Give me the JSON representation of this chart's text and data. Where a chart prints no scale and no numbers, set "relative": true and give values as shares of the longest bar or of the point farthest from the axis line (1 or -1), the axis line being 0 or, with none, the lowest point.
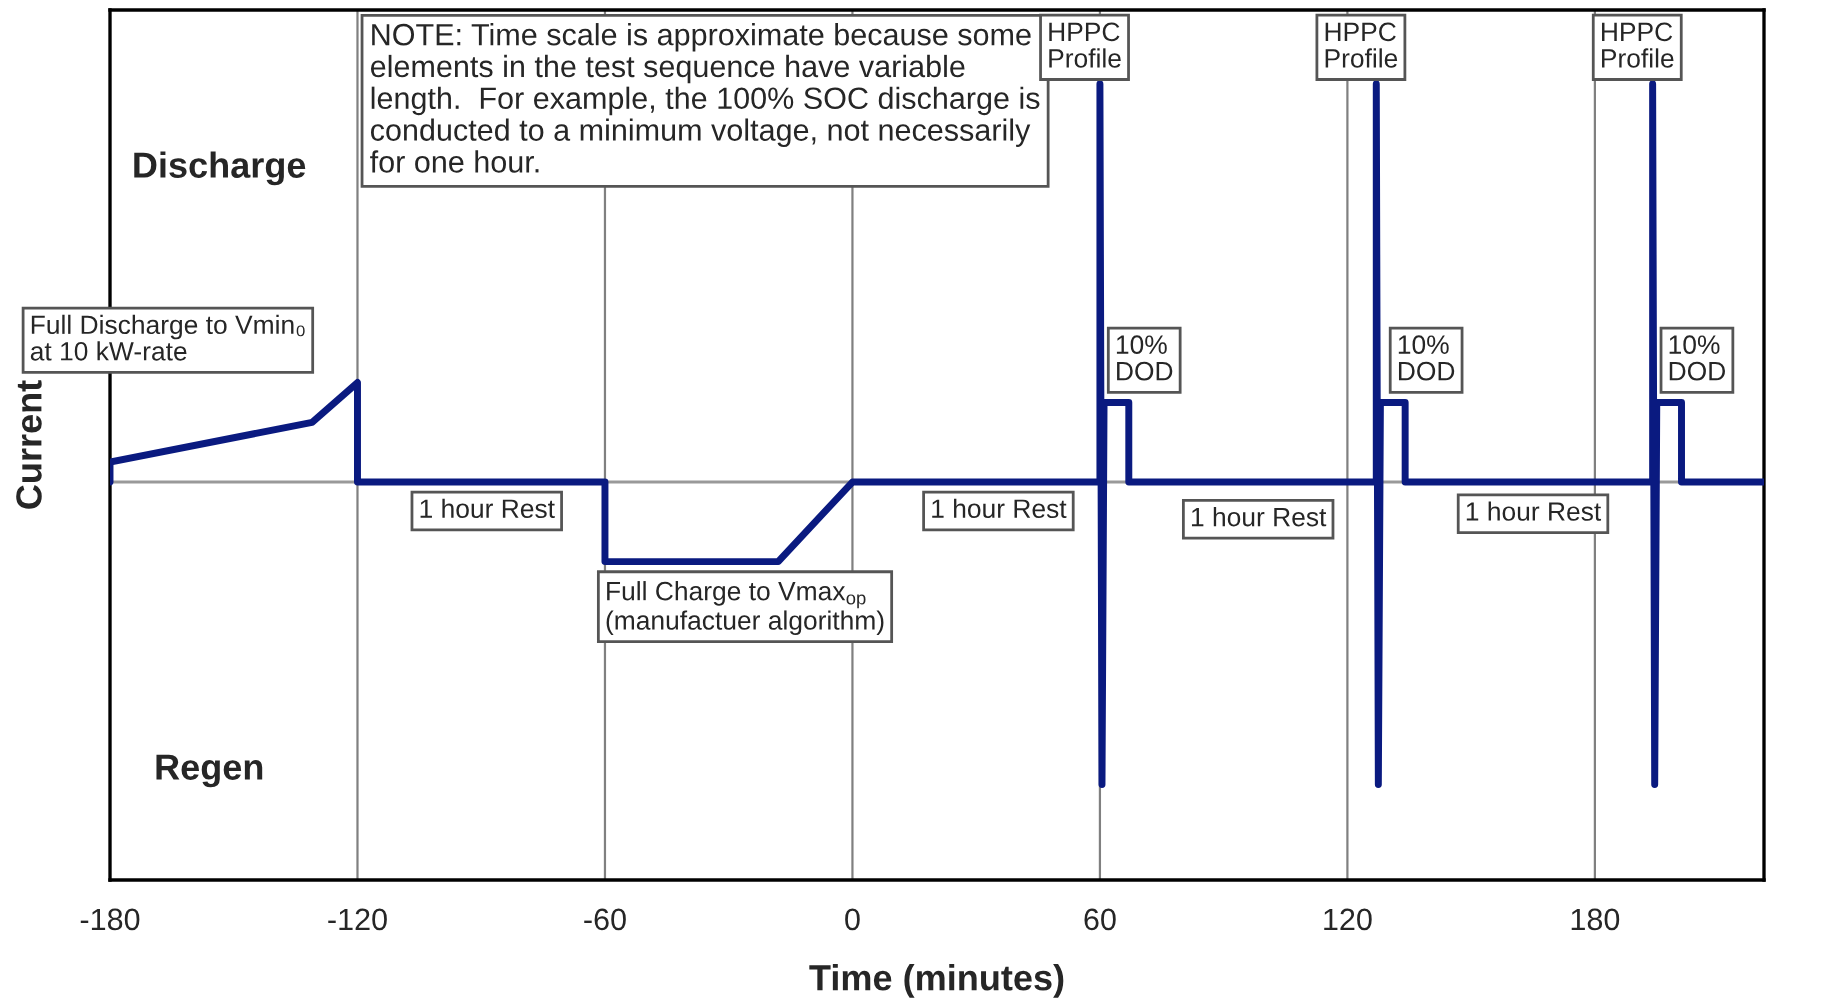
{
  "chart_data": {
    "type": "line",
    "relative": true,
    "xlabel": "Time (minutes)",
    "ylabel": "Current",
    "xlim": [
      -180,
      221
    ],
    "xticks": [
      -180,
      -120,
      -60,
      0,
      60,
      120,
      180
    ],
    "grid": "x",
    "tick_labels": "x",
    "legend": false,
    "marker": "none",
    "line_style": "solid",
    "series": [
      {
        "color": "#0a1a80",
        "x": [
          -180,
          -180,
          -131,
          -120,
          -120,
          -60,
          -60,
          -18,
          0,
          60,
          60,
          60.5,
          61,
          67,
          67,
          127,
          127,
          127.5,
          128,
          134,
          134,
          194,
          194,
          194.5,
          195,
          201,
          201,
          221
        ],
        "values": [
          0,
          0.05,
          0.15,
          0.25,
          0,
          0,
          -0.2,
          -0.2,
          0,
          0,
          1,
          -0.76,
          0.2,
          0.2,
          0,
          0,
          1,
          -0.76,
          0.2,
          0.2,
          0,
          0,
          1,
          -0.76,
          0.2,
          0.2,
          0,
          0
        ]
      }
    ],
    "annotations": [
      "Discharge",
      "Regen",
      "NOTE: Time scale is approximate because some\nelements in the test sequence have variable\nlength.  For example, the 100% SOC discharge is\nconducted to a minimum voltage, not necessarily\nfor one hour.",
      {
        "text": "Full Discharge to Vmin₀\nat 10 kW-rate",
        "x": -120,
        "y": 0.25
      },
      {
        "text": "1 hour Rest",
        "x": -90,
        "y": 0
      },
      {
        "text": "Full Charge to Vmax$_{op}$\n(manufactuer algorithm)",
        "x": -60,
        "y": -0.2
      },
      {
        "text": "1 hour Rest",
        "x": 30,
        "y": 0
      },
      {
        "text": "1 hour Rest",
        "x": 95,
        "y": 0
      },
      {
        "text": "1 hour Rest",
        "x": 165,
        "y": 0
      },
      {
        "text": "HPPC\nProfile",
        "x": 60,
        "y": 1
      },
      {
        "text": "HPPC\nProfile",
        "x": 127,
        "y": 1
      },
      {
        "text": "HPPC\nProfile",
        "x": 194,
        "y": 1
      },
      {
        "text": "10%\nDOD",
        "x": 67,
        "y": 0.2
      },
      {
        "text": "10%\nDOD",
        "x": 134,
        "y": 0.2
      },
      {
        "text": "10%\nDOD",
        "x": 201,
        "y": 0.2
      }
    ]
  }
}
